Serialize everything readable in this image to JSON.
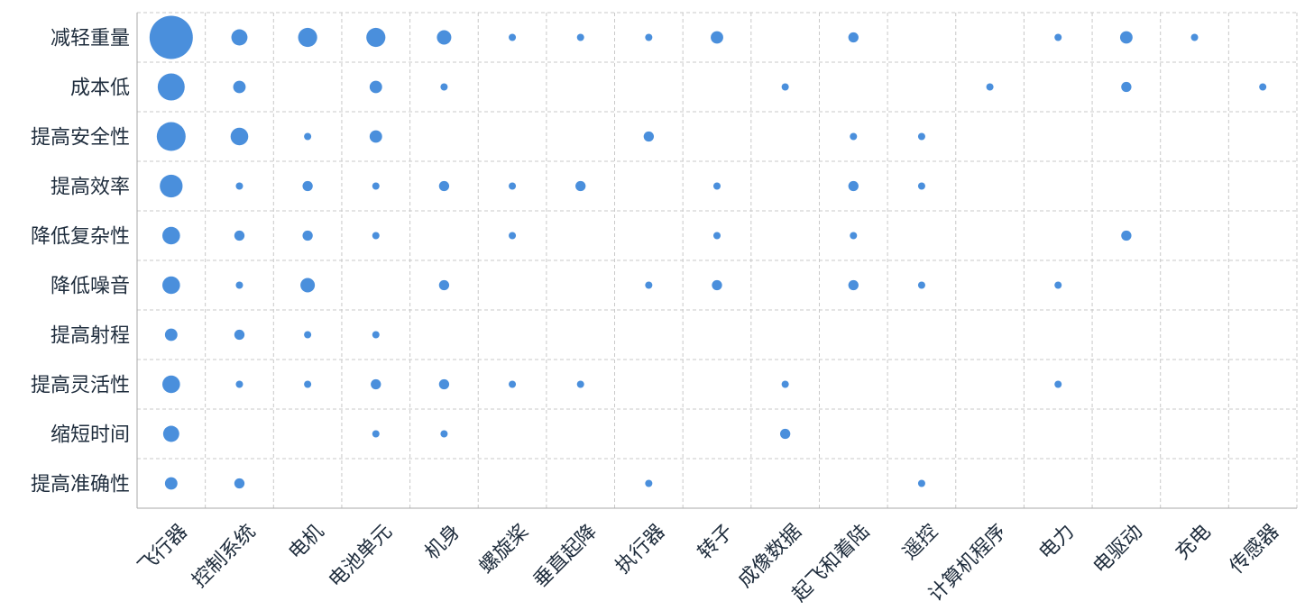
{
  "chart_data": {
    "type": "bubble-matrix",
    "x_categories": [
      "飞行器",
      "控制系统",
      "电机",
      "电池单元",
      "机身",
      "螺旋桨",
      "垂直起降",
      "执行器",
      "转子",
      "成像数据",
      "起飞和着陆",
      "遥控",
      "计算机程序",
      "电力",
      "电驱动",
      "充电",
      "传感器"
    ],
    "y_categories": [
      "减轻重量",
      "成本低",
      "提高安全性",
      "提高效率",
      "降低复杂性",
      "降低噪音",
      "提高射程",
      "提高灵活性",
      "缩短时间",
      "提高准确性"
    ],
    "values": [
      [
        36,
        5,
        7,
        7,
        4,
        1,
        1,
        1,
        3,
        null,
        2,
        null,
        null,
        1,
        3,
        1,
        null
      ],
      [
        14,
        3,
        null,
        3,
        1,
        null,
        null,
        null,
        null,
        1,
        null,
        null,
        1,
        null,
        2,
        null,
        1
      ],
      [
        16,
        6,
        1,
        3,
        null,
        null,
        null,
        2,
        null,
        null,
        1,
        1,
        null,
        null,
        null,
        null,
        null
      ],
      [
        10,
        1,
        2,
        1,
        2,
        1,
        2,
        null,
        1,
        null,
        2,
        1,
        null,
        null,
        null,
        null,
        null
      ],
      [
        6,
        2,
        2,
        1,
        null,
        1,
        null,
        null,
        1,
        null,
        1,
        null,
        null,
        null,
        2,
        null,
        null
      ],
      [
        6,
        1,
        4,
        null,
        2,
        null,
        null,
        1,
        2,
        null,
        2,
        1,
        null,
        1,
        null,
        null,
        null
      ],
      [
        3,
        2,
        1,
        1,
        null,
        null,
        null,
        null,
        null,
        null,
        null,
        null,
        null,
        null,
        null,
        null,
        null
      ],
      [
        6,
        1,
        1,
        2,
        2,
        1,
        1,
        null,
        null,
        1,
        null,
        null,
        null,
        1,
        null,
        null,
        null
      ],
      [
        5,
        null,
        null,
        1,
        1,
        null,
        null,
        null,
        null,
        2,
        null,
        null,
        null,
        null,
        null,
        null,
        null
      ],
      [
        3,
        2,
        null,
        null,
        null,
        null,
        null,
        1,
        null,
        null,
        null,
        1,
        null,
        null,
        null,
        null,
        null
      ]
    ],
    "color": "#4a8fdc",
    "grid": true
  }
}
